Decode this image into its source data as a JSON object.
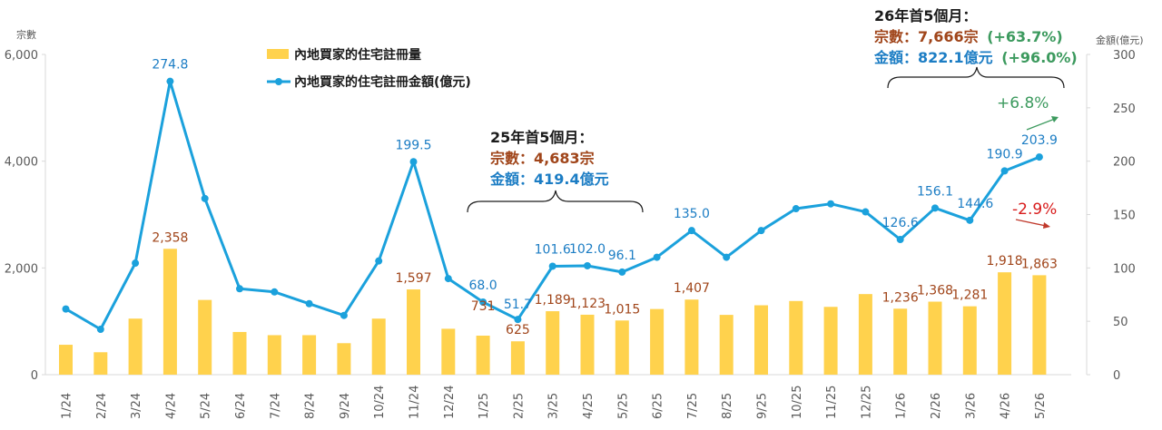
{
  "chart_data": {
    "type": "bar+line",
    "categories": [
      "1/24",
      "2/24",
      "3/24",
      "4/24",
      "5/24",
      "6/24",
      "7/24",
      "8/24",
      "9/24",
      "10/24",
      "11/24",
      "12/24",
      "1/25",
      "2/25",
      "3/25",
      "4/25",
      "5/25",
      "6/25",
      "7/25",
      "8/25",
      "9/25",
      "10/25",
      "11/25",
      "12/25",
      "1/26",
      "2/26",
      "3/26",
      "4/26",
      "5/26"
    ],
    "series": [
      {
        "name": "內地買家的住宅註冊量",
        "type": "bar",
        "axis": "left",
        "color": "#FFD24D",
        "values": [
          560,
          420,
          1050,
          2358,
          1400,
          800,
          740,
          740,
          590,
          1050,
          1597,
          860,
          731,
          625,
          1189,
          1123,
          1015,
          1230,
          1407,
          1120,
          1300,
          1380,
          1270,
          1510,
          1236,
          1368,
          1281,
          1918,
          1863
        ],
        "labels": [
          "",
          "",
          "",
          "2,358",
          "",
          "",
          "",
          "",
          "",
          "",
          "1,597",
          "",
          "731",
          "625",
          "1,189",
          "1,123",
          "1,015",
          "",
          "1,407",
          "",
          "",
          "",
          "",
          "",
          "1,236",
          "1,368",
          "1,281",
          "1,918",
          "1,863"
        ]
      },
      {
        "name": "內地買家的住宅註冊金額(億元)",
        "type": "line",
        "axis": "right",
        "color": "#1BA1DC",
        "values": [
          61.5,
          42.5,
          104.5,
          274.8,
          165,
          80.5,
          77.5,
          66.5,
          55.5,
          106.5,
          199.5,
          90,
          68.0,
          51.7,
          101.6,
          102.0,
          96.1,
          110,
          135.0,
          110,
          135,
          155.5,
          160,
          152.5,
          126.6,
          156.1,
          144.6,
          190.9,
          203.9
        ],
        "labels": [
          "",
          "",
          "",
          "274.8",
          "",
          "",
          "",
          "",
          "",
          "",
          "199.5",
          "",
          "68.0",
          "51.7",
          "101.6",
          "102.0",
          "96.1",
          "",
          "135.0",
          "",
          "",
          "",
          "",
          "",
          "126.6",
          "156.1",
          "144.6",
          "190.9",
          "203.9"
        ]
      }
    ],
    "left_axis": {
      "title": "宗數",
      "ylim": [
        0,
        6000
      ],
      "ticks": [
        "0",
        "2,000",
        "4,000",
        "6,000"
      ]
    },
    "right_axis": {
      "title": "金額(億元)",
      "ylim": [
        0,
        300
      ],
      "ticks": [
        "0",
        "50",
        "100",
        "150",
        "200",
        "250",
        "300"
      ]
    },
    "legend_position": "top-left",
    "annotations": {
      "box25": {
        "title": "25年首5個月：",
        "count": "宗數：4,683宗",
        "amount": "金額：419.4億元"
      },
      "box26": {
        "title": "26年首5個月：",
        "count_prefix": "宗數：7,666宗",
        "count_change": "(+63.7%)",
        "amount_prefix": "金額：822.1億元",
        "amount_change": "(+96.0%)"
      },
      "line_change": "+6.8%",
      "bar_change": "-2.9%"
    },
    "colors": {
      "bar": "#FFD24D",
      "line": "#1BA1DC",
      "bar_label": "#A0451A",
      "line_label": "#1C7DC4",
      "green": "#3C9A5E",
      "red": "#D81B1B",
      "axis_text": "#595959"
    }
  }
}
